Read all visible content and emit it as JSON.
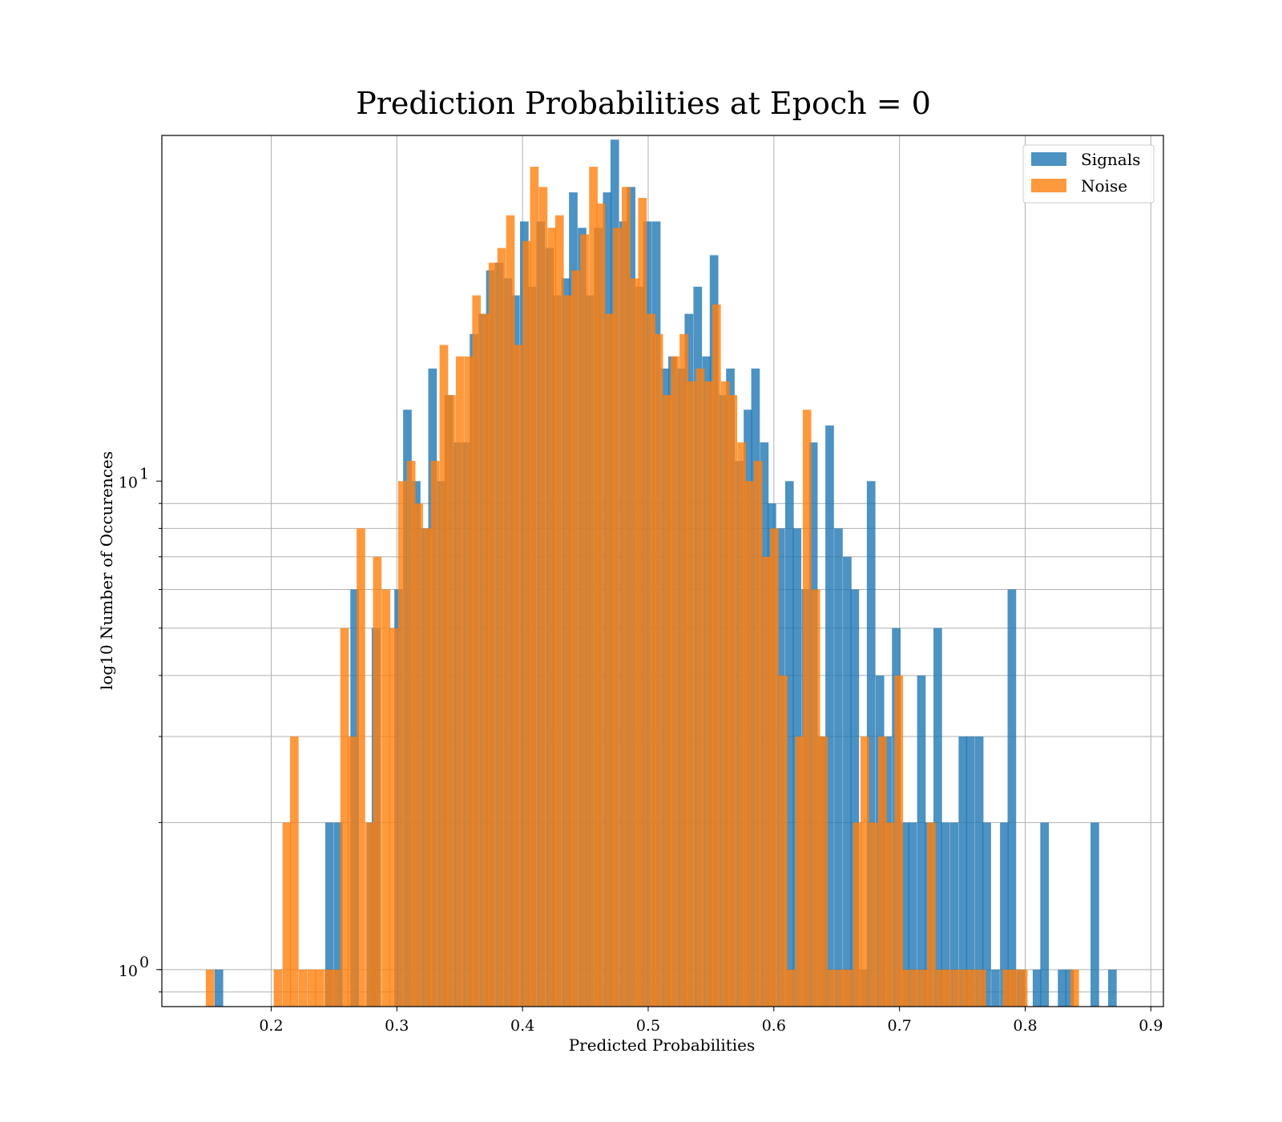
{
  "chart_data": {
    "type": "bar",
    "title": "Prediction Probabilities at Epoch = 0",
    "xlabel": "Predicted Probabilities",
    "ylabel": "log10 Number of Occurences",
    "xlim": [
      0.113,
      0.91
    ],
    "ylim": [
      0.84,
      51
    ],
    "yscale": "log",
    "grid": true,
    "legend_position": "top-right",
    "xticks": [
      {
        "value": 0.2,
        "label": "0.2"
      },
      {
        "value": 0.3,
        "label": "0.3"
      },
      {
        "value": 0.4,
        "label": "0.4"
      },
      {
        "value": 0.5,
        "label": "0.5"
      },
      {
        "value": 0.6,
        "label": "0.6"
      },
      {
        "value": 0.7,
        "label": "0.7"
      },
      {
        "value": 0.8,
        "label": "0.8"
      },
      {
        "value": 0.9,
        "label": "0.9"
      }
    ],
    "yticks": [
      {
        "value": 1,
        "base": "10",
        "exp": "0"
      },
      {
        "value": 10,
        "base": "10",
        "exp": "1"
      }
    ],
    "series": [
      {
        "name": "Signals",
        "color": "#1f77b4",
        "bins": [
          [
            0.155,
            1
          ],
          [
            0.243,
            2
          ],
          [
            0.25,
            2
          ],
          [
            0.263,
            6
          ],
          [
            0.276,
            2
          ],
          [
            0.28,
            5
          ],
          [
            0.298,
            6
          ],
          [
            0.305,
            14
          ],
          [
            0.312,
            10
          ],
          [
            0.319,
            8
          ],
          [
            0.325,
            17
          ],
          [
            0.332,
            10
          ],
          [
            0.338,
            15
          ],
          [
            0.345,
            12
          ],
          [
            0.352,
            12
          ],
          [
            0.358,
            20
          ],
          [
            0.365,
            22
          ],
          [
            0.371,
            27
          ],
          [
            0.378,
            28
          ],
          [
            0.385,
            26
          ],
          [
            0.391,
            24
          ],
          [
            0.398,
            34
          ],
          [
            0.404,
            25
          ],
          [
            0.411,
            34
          ],
          [
            0.418,
            30
          ],
          [
            0.424,
            24
          ],
          [
            0.431,
            26
          ],
          [
            0.437,
            39
          ],
          [
            0.444,
            33
          ],
          [
            0.45,
            24
          ],
          [
            0.457,
            33
          ],
          [
            0.464,
            39
          ],
          [
            0.47,
            50
          ],
          [
            0.477,
            34
          ],
          [
            0.483,
            40
          ],
          [
            0.49,
            25
          ],
          [
            0.496,
            34
          ],
          [
            0.503,
            34
          ],
          [
            0.51,
            17
          ],
          [
            0.516,
            18
          ],
          [
            0.523,
            17
          ],
          [
            0.529,
            22
          ],
          [
            0.536,
            25
          ],
          [
            0.543,
            18
          ],
          [
            0.549,
            29
          ],
          [
            0.556,
            15
          ],
          [
            0.562,
            17
          ],
          [
            0.569,
            11
          ],
          [
            0.576,
            14
          ],
          [
            0.582,
            17
          ],
          [
            0.589,
            12
          ],
          [
            0.595,
            9
          ],
          [
            0.602,
            8
          ],
          [
            0.609,
            10
          ],
          [
            0.615,
            8
          ],
          [
            0.622,
            6
          ],
          [
            0.628,
            12
          ],
          [
            0.635,
            3
          ],
          [
            0.641,
            13
          ],
          [
            0.648,
            8
          ],
          [
            0.655,
            7
          ],
          [
            0.661,
            6
          ],
          [
            0.668,
            1
          ],
          [
            0.674,
            10
          ],
          [
            0.681,
            4
          ],
          [
            0.687,
            3
          ],
          [
            0.694,
            5
          ],
          [
            0.701,
            2
          ],
          [
            0.707,
            2
          ],
          [
            0.714,
            4
          ],
          [
            0.72,
            2
          ],
          [
            0.727,
            5
          ],
          [
            0.733,
            2
          ],
          [
            0.74,
            2
          ],
          [
            0.747,
            3
          ],
          [
            0.753,
            3
          ],
          [
            0.76,
            3
          ],
          [
            0.766,
            2
          ],
          [
            0.773,
            1
          ],
          [
            0.78,
            2
          ],
          [
            0.786,
            6
          ],
          [
            0.793,
            1
          ],
          [
            0.806,
            1
          ],
          [
            0.812,
            2
          ],
          [
            0.826,
            1
          ],
          [
            0.832,
            1
          ],
          [
            0.852,
            2
          ],
          [
            0.866,
            1
          ]
        ]
      },
      {
        "name": "Noise",
        "color": "#ff7f0e",
        "bins": [
          [
            0.148,
            1
          ],
          [
            0.202,
            1
          ],
          [
            0.209,
            2
          ],
          [
            0.215,
            3
          ],
          [
            0.222,
            1
          ],
          [
            0.229,
            1
          ],
          [
            0.235,
            1
          ],
          [
            0.242,
            1
          ],
          [
            0.248,
            1
          ],
          [
            0.255,
            5
          ],
          [
            0.261,
            3
          ],
          [
            0.268,
            8
          ],
          [
            0.275,
            2
          ],
          [
            0.281,
            7
          ],
          [
            0.288,
            6
          ],
          [
            0.294,
            5
          ],
          [
            0.301,
            10
          ],
          [
            0.308,
            11
          ],
          [
            0.314,
            9
          ],
          [
            0.321,
            8
          ],
          [
            0.327,
            11
          ],
          [
            0.334,
            19
          ],
          [
            0.34,
            15
          ],
          [
            0.347,
            18
          ],
          [
            0.354,
            18
          ],
          [
            0.36,
            24
          ],
          [
            0.367,
            22
          ],
          [
            0.373,
            28
          ],
          [
            0.38,
            30
          ],
          [
            0.387,
            35
          ],
          [
            0.393,
            19
          ],
          [
            0.4,
            31
          ],
          [
            0.406,
            44
          ],
          [
            0.413,
            40
          ],
          [
            0.42,
            33
          ],
          [
            0.426,
            35
          ],
          [
            0.433,
            24
          ],
          [
            0.439,
            27
          ],
          [
            0.446,
            32
          ],
          [
            0.453,
            44
          ],
          [
            0.459,
            37
          ],
          [
            0.466,
            22
          ],
          [
            0.472,
            33
          ],
          [
            0.479,
            40
          ],
          [
            0.486,
            26
          ],
          [
            0.492,
            38
          ],
          [
            0.499,
            22
          ],
          [
            0.505,
            20
          ],
          [
            0.512,
            15
          ],
          [
            0.518,
            18
          ],
          [
            0.525,
            20
          ],
          [
            0.531,
            16
          ],
          [
            0.538,
            17
          ],
          [
            0.545,
            16
          ],
          [
            0.551,
            23
          ],
          [
            0.558,
            16
          ],
          [
            0.564,
            15
          ],
          [
            0.571,
            12
          ],
          [
            0.577,
            10
          ],
          [
            0.584,
            11
          ],
          [
            0.591,
            7
          ],
          [
            0.597,
            8
          ],
          [
            0.604,
            4
          ],
          [
            0.61,
            1
          ],
          [
            0.617,
            3
          ],
          [
            0.623,
            14
          ],
          [
            0.63,
            6
          ],
          [
            0.636,
            3
          ],
          [
            0.643,
            1
          ],
          [
            0.65,
            1
          ],
          [
            0.656,
            1
          ],
          [
            0.663,
            2
          ],
          [
            0.669,
            3
          ],
          [
            0.676,
            2
          ],
          [
            0.683,
            3
          ],
          [
            0.689,
            2
          ],
          [
            0.696,
            4
          ],
          [
            0.702,
            1
          ],
          [
            0.709,
            1
          ],
          [
            0.716,
            1
          ],
          [
            0.722,
            2
          ],
          [
            0.729,
            1
          ],
          [
            0.735,
            1
          ],
          [
            0.742,
            1
          ],
          [
            0.749,
            1
          ],
          [
            0.755,
            1
          ],
          [
            0.762,
            1
          ],
          [
            0.782,
            1
          ],
          [
            0.788,
            1
          ],
          [
            0.795,
            1
          ],
          [
            0.836,
            1
          ]
        ]
      }
    ]
  }
}
